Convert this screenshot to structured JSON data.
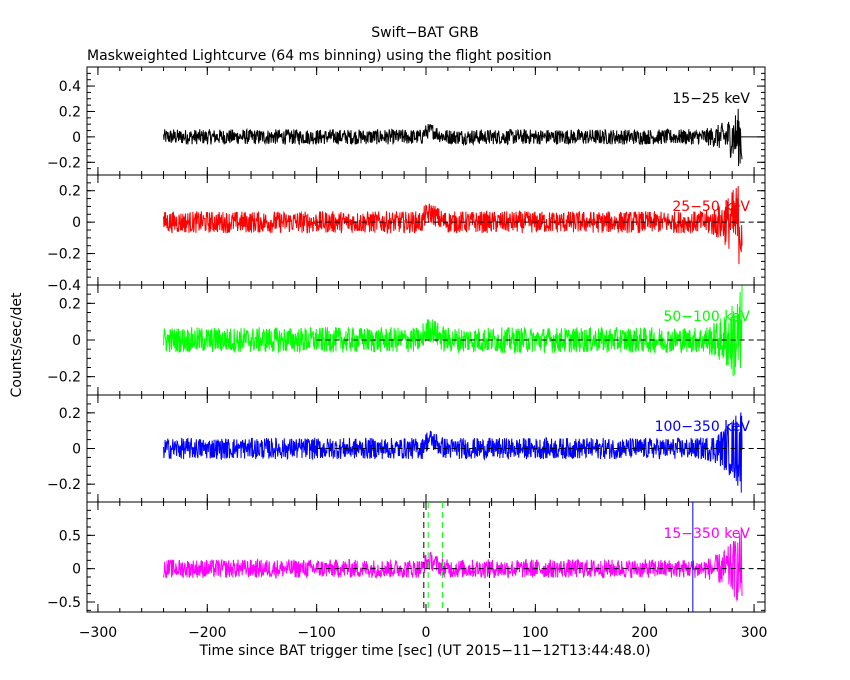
{
  "chart_data": {
    "type": "line",
    "title": "Swift−BAT GRB",
    "subtitle": "Maskweighted Lightcurve (64 ms binning) using the flight position",
    "xlabel": "Time since BAT trigger time [sec] (UT 2015−11−12T13:44:48.0)",
    "ylabel": "Counts/sec/det",
    "xlim": [
      -310,
      310
    ],
    "x_ticks": [
      -300,
      -200,
      -100,
      0,
      100,
      200,
      300
    ],
    "x_tick_labels": [
      "−300",
      "−200",
      "−100",
      "0",
      "100",
      "200",
      "300"
    ],
    "data_x_range": [
      -240,
      289
    ],
    "grid": false,
    "panels": [
      {
        "name": "15−25 keV",
        "color": "#000000",
        "ylim": [
          -0.3,
          0.55
        ],
        "yticks": [
          -0.2,
          0,
          0.2,
          0.4
        ],
        "ytick_labels": [
          "−0.2",
          "0",
          "0.2",
          "0.4"
        ],
        "noise_amplitude": 0.06,
        "zero_line": "solid",
        "zero_line_start": 288
      },
      {
        "name": "25−50 keV",
        "color": "#ff0000",
        "ylim": [
          -0.4,
          0.3
        ],
        "yticks": [
          -0.4,
          -0.2,
          0,
          0.2
        ],
        "ytick_labels": [
          "−0.4",
          "−0.2",
          "0",
          "0.2"
        ],
        "noise_amplitude": 0.07,
        "zero_line": "dashed",
        "zero_line_start": -100
      },
      {
        "name": "50−100 keV",
        "color": "#00ff00",
        "ylim": [
          -0.3,
          0.3
        ],
        "yticks": [
          -0.2,
          0,
          0.2
        ],
        "ytick_labels": [
          "−0.2",
          "0",
          "0.2"
        ],
        "noise_amplitude": 0.07,
        "zero_line": "dashed",
        "zero_line_start": -100
      },
      {
        "name": "100−350 keV",
        "color": "#0000ff",
        "ylim": [
          -0.3,
          0.3
        ],
        "yticks": [
          -0.2,
          0,
          0.2
        ],
        "ytick_labels": [
          "−0.2",
          "0",
          "0.2"
        ],
        "noise_amplitude": 0.06,
        "zero_line": "dashed",
        "zero_line_start": -100
      },
      {
        "name": "15−350 keV",
        "color": "#ff00ff",
        "ylim": [
          -0.65,
          1.0
        ],
        "yticks": [
          -0.5,
          0,
          0.5
        ],
        "ytick_labels": [
          "−0.5",
          "0",
          "0.5"
        ],
        "noise_amplitude": 0.14,
        "zero_line": "dashed",
        "zero_line_start": -100
      }
    ],
    "vertical_markers": [
      {
        "x": -2,
        "color": "#000000",
        "style": "dashed"
      },
      {
        "x": 58,
        "color": "#000000",
        "style": "dashed"
      },
      {
        "x": 2,
        "color": "#00ff00",
        "style": "dashed"
      },
      {
        "x": 15,
        "color": "#00ff00",
        "style": "dashed"
      },
      {
        "x": 244,
        "color": "#0000ff",
        "style": "solid"
      }
    ]
  }
}
